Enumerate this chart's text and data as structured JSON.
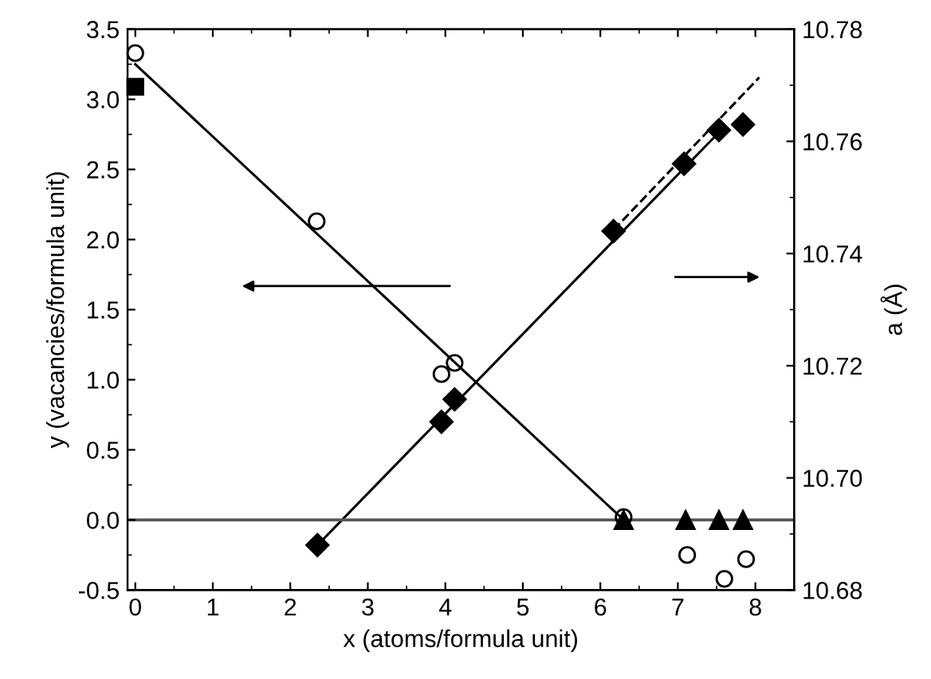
{
  "chart_data": {
    "type": "scatter",
    "xlabel": "x (atoms/formula unit)",
    "ylabel": "y (vacancies/formula unit)",
    "y2label": "a (Å)",
    "xlim": [
      -0.1,
      8.5
    ],
    "xticks": [
      0,
      1,
      2,
      3,
      4,
      5,
      6,
      7,
      8
    ],
    "ylim": [
      -0.5,
      3.5
    ],
    "yticks": [
      -0.5,
      {
        "value": 0,
        "label": "0.0"
      },
      0.5,
      {
        "value": 1,
        "label": "1.0"
      },
      1.5,
      {
        "value": 2,
        "label": "2.0"
      },
      2.5,
      {
        "value": 3,
        "label": "3.0"
      },
      3.5
    ],
    "y2lim": [
      10.68,
      10.78
    ],
    "y2ticks": [
      10.68,
      {
        "value": 10.7,
        "label": "10.70"
      },
      10.72,
      10.74,
      10.76,
      10.78
    ],
    "grid": false,
    "legend": false,
    "ref_lines": [
      {
        "axis": "y",
        "value": 0,
        "color": "#555555"
      }
    ],
    "series": [
      {
        "marker": "circle",
        "color": "#000000",
        "x": [
          0,
          2.34,
          3.95,
          4.12,
          6.3,
          7.12,
          7.6,
          7.88
        ],
        "values": [
          3.33,
          2.13,
          1.04,
          1.12,
          0.02,
          -0.25,
          -0.42,
          -0.28
        ]
      },
      {
        "marker": "square",
        "color": "#000000",
        "x": [
          0
        ],
        "values": [
          3.09
        ]
      },
      {
        "marker": "triangle",
        "color": "#000000",
        "x": [
          6.3,
          7.1,
          7.53,
          7.84
        ],
        "values": [
          0,
          0,
          0,
          0
        ]
      },
      {
        "type": "line",
        "marker": "none",
        "line_style": "solid",
        "color": "#000000",
        "x": [
          0,
          6.3
        ],
        "values": [
          3.25,
          0
        ]
      },
      {
        "axis": "y2",
        "marker": "diamond",
        "color": "#000000",
        "x": [
          2.35,
          3.95,
          4.12,
          6.17,
          7.08,
          7.53,
          7.84
        ],
        "values": [
          10.688,
          10.71,
          10.714,
          10.744,
          10.756,
          10.762,
          10.763
        ]
      },
      {
        "type": "line",
        "axis": "y2",
        "marker": "none",
        "line_style": "solid",
        "color": "#000000",
        "x": [
          2.35,
          7.53
        ],
        "values": [
          10.688,
          10.7616
        ]
      },
      {
        "type": "line",
        "axis": "y2",
        "marker": "none",
        "line_style": "dashed",
        "color": "#000000",
        "x": [
          6.17,
          8.05
        ],
        "values": [
          10.7442,
          10.7714
        ]
      }
    ]
  }
}
